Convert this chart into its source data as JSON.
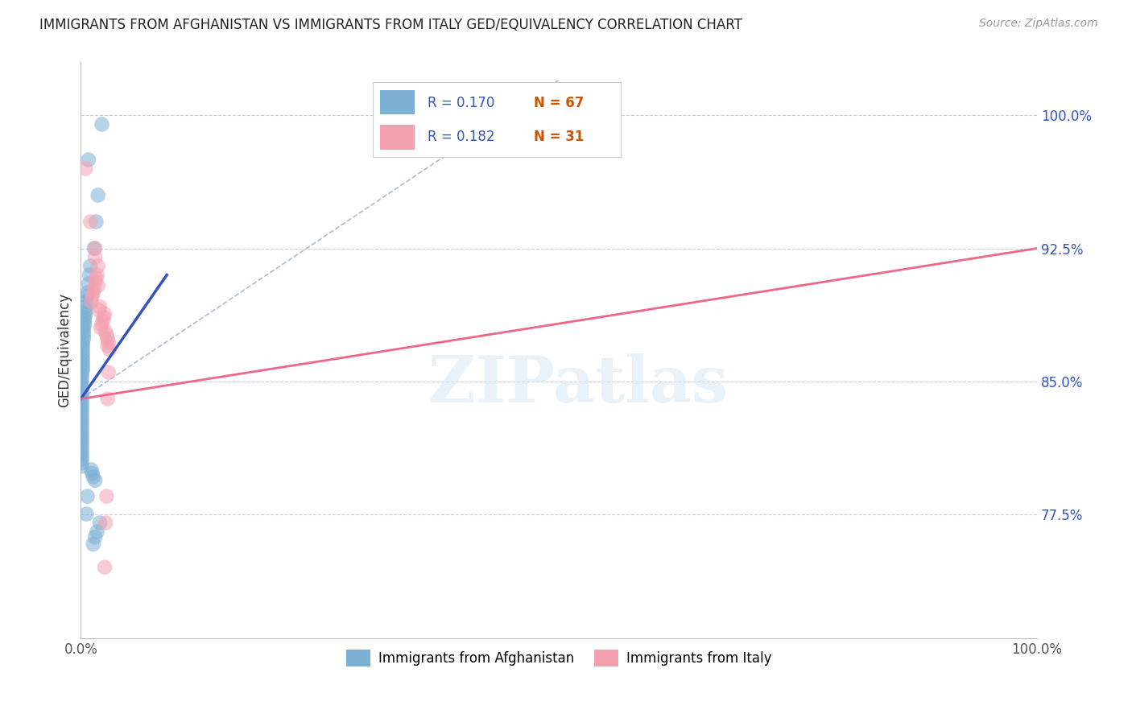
{
  "title": "IMMIGRANTS FROM AFGHANISTAN VS IMMIGRANTS FROM ITALY GED/EQUIVALENCY CORRELATION CHART",
  "source": "Source: ZipAtlas.com",
  "ylabel": "GED/Equivalency",
  "xlim": [
    0.0,
    1.0
  ],
  "ylim": [
    0.705,
    1.03
  ],
  "yticks": [
    0.775,
    0.85,
    0.925,
    1.0
  ],
  "ytick_labels": [
    "77.5%",
    "85.0%",
    "92.5%",
    "100.0%"
  ],
  "legend_r1": "R = 0.170",
  "legend_n1": "N = 67",
  "legend_r2": "R = 0.182",
  "legend_n2": "N = 31",
  "color_afghanistan": "#7BAFD4",
  "color_italy": "#F4A0B0",
  "color_trend_afghanistan": "#3355BB",
  "color_trend_italy": "#EE6688",
  "color_refline": "#AABBDD",
  "watermark": "ZIPatlas",
  "afghanistan_x": [
    0.022,
    0.008,
    0.018,
    0.016,
    0.014,
    0.01,
    0.009,
    0.008,
    0.007,
    0.006,
    0.006,
    0.005,
    0.005,
    0.005,
    0.004,
    0.004,
    0.004,
    0.003,
    0.003,
    0.003,
    0.003,
    0.002,
    0.002,
    0.002,
    0.002,
    0.002,
    0.002,
    0.002,
    0.002,
    0.002,
    0.001,
    0.001,
    0.001,
    0.001,
    0.001,
    0.001,
    0.001,
    0.001,
    0.001,
    0.001,
    0.001,
    0.001,
    0.001,
    0.001,
    0.001,
    0.001,
    0.001,
    0.001,
    0.001,
    0.001,
    0.001,
    0.001,
    0.001,
    0.001,
    0.001,
    0.001,
    0.001,
    0.011,
    0.012,
    0.013,
    0.015,
    0.007,
    0.006,
    0.02,
    0.017,
    0.015,
    0.013
  ],
  "afghanistan_y": [
    0.995,
    0.975,
    0.955,
    0.94,
    0.925,
    0.915,
    0.91,
    0.905,
    0.9,
    0.898,
    0.895,
    0.892,
    0.89,
    0.888,
    0.886,
    0.884,
    0.882,
    0.88,
    0.878,
    0.876,
    0.874,
    0.872,
    0.87,
    0.868,
    0.866,
    0.864,
    0.862,
    0.86,
    0.858,
    0.856,
    0.854,
    0.852,
    0.85,
    0.848,
    0.846,
    0.844,
    0.842,
    0.84,
    0.838,
    0.836,
    0.834,
    0.832,
    0.83,
    0.828,
    0.826,
    0.824,
    0.822,
    0.82,
    0.818,
    0.816,
    0.814,
    0.812,
    0.81,
    0.808,
    0.806,
    0.804,
    0.802,
    0.8,
    0.798,
    0.796,
    0.794,
    0.785,
    0.775,
    0.77,
    0.765,
    0.762,
    0.758
  ],
  "italy_x": [
    0.005,
    0.01,
    0.015,
    0.015,
    0.018,
    0.017,
    0.016,
    0.015,
    0.018,
    0.014,
    0.013,
    0.012,
    0.011,
    0.02,
    0.019,
    0.025,
    0.024,
    0.023,
    0.022,
    0.021,
    0.026,
    0.027,
    0.028,
    0.029,
    0.028,
    0.03,
    0.029,
    0.028,
    0.027,
    0.026,
    0.025
  ],
  "italy_y": [
    0.97,
    0.94,
    0.925,
    0.92,
    0.915,
    0.91,
    0.908,
    0.906,
    0.904,
    0.902,
    0.9,
    0.898,
    0.895,
    0.892,
    0.89,
    0.888,
    0.886,
    0.884,
    0.882,
    0.88,
    0.878,
    0.876,
    0.874,
    0.872,
    0.87,
    0.868,
    0.855,
    0.84,
    0.785,
    0.77,
    0.745
  ],
  "afg_trend_x": [
    0.0,
    0.09
  ],
  "afg_trend_y": [
    0.84,
    0.91
  ],
  "ita_trend_x": [
    0.0,
    1.0
  ],
  "ita_trend_y": [
    0.84,
    0.925
  ],
  "ref_line_x": [
    0.0,
    0.5
  ],
  "ref_line_y": [
    0.84,
    1.02
  ],
  "background_color": "#FFFFFF",
  "grid_color": "#CCCCDD"
}
